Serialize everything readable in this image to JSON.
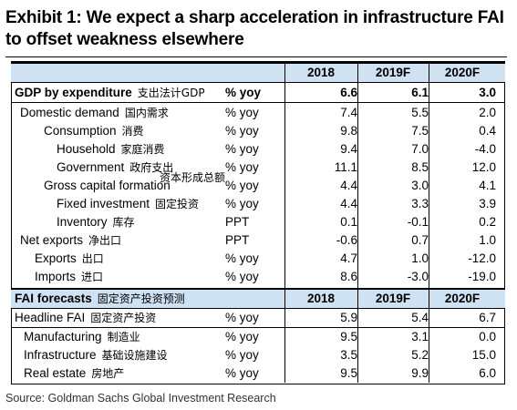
{
  "title": "Exhibit 1: We expect a sharp acceleration in infrastructure FAI to offset weakness elsewhere",
  "header": {
    "y1": "2018",
    "y2": "2019F",
    "y3": "2020F"
  },
  "gdp": {
    "label": "GDP by expenditure",
    "cn": "支出法计GDP",
    "unit": "% yoy",
    "v1": "6.6",
    "v2": "6.1",
    "v3": "3.0"
  },
  "rows": [
    {
      "label": "Domestic demand",
      "cn": "国内需求",
      "unit": "% yoy",
      "v1": "7.4",
      "v2": "5.5",
      "v3": "2.0"
    },
    {
      "label": "Consumption",
      "cn": "消费",
      "unit": "% yoy",
      "v1": "9.8",
      "v2": "7.5",
      "v3": "0.4"
    },
    {
      "label": "Household",
      "cn": "家庭消费",
      "unit": "% yoy",
      "v1": "9.4",
      "v2": "7.0",
      "v3": "-4.0"
    },
    {
      "label": "Government",
      "cn": "政府支出",
      "unit": "% yoy",
      "v1": "11.1",
      "v2": "8.5",
      "v3": "12.0"
    },
    {
      "label": "Gross capital formation",
      "cn": "",
      "unit": "% yoy",
      "v1": "4.4",
      "v2": "3.0",
      "v3": "4.1"
    },
    {
      "label": "Fixed investment",
      "cn": "固定投资",
      "unit": "% yoy",
      "v1": "4.4",
      "v2": "3.3",
      "v3": "3.9"
    },
    {
      "label": "Inventory",
      "cn": "库存",
      "unit": "PPT",
      "v1": "0.1",
      "v2": "-0.1",
      "v3": "0.2"
    },
    {
      "label": "Net exports",
      "cn": "净出口",
      "unit": "PPT",
      "v1": "-0.6",
      "v2": "0.7",
      "v3": "1.0"
    },
    {
      "label": "Exports",
      "cn": "出口",
      "unit": "% yoy",
      "v1": "4.7",
      "v2": "1.0",
      "v3": "-12.0"
    },
    {
      "label": "Imports",
      "cn": "进口",
      "unit": "% yoy",
      "v1": "8.6",
      "v2": "-3.0",
      "v3": "-19.0"
    }
  ],
  "overlay_cn": "资本形成总额",
  "fai_header": {
    "label": "FAI forecasts",
    "cn": "固定资产投资预测",
    "y1": "2018",
    "y2": "2019F",
    "y3": "2020F"
  },
  "fai_rows": [
    {
      "label": "Headline FAI",
      "cn": "固定资产投资",
      "unit": "% yoy",
      "v1": "5.9",
      "v2": "5.4",
      "v3": "6.7"
    },
    {
      "label": "Manufacturing",
      "cn": "制造业",
      "unit": "% yoy",
      "v1": "9.5",
      "v2": "3.1",
      "v3": "0.0"
    },
    {
      "label": "Infrastructure",
      "cn": "基础设施建设",
      "unit": "% yoy",
      "v1": "3.5",
      "v2": "5.2",
      "v3": "15.0"
    },
    {
      "label": "Real estate",
      "cn": "房地产",
      "unit": "% yoy",
      "v1": "9.5",
      "v2": "9.9",
      "v3": "6.0"
    }
  ],
  "source": "Source: Goldman Sachs Global Investment Research"
}
